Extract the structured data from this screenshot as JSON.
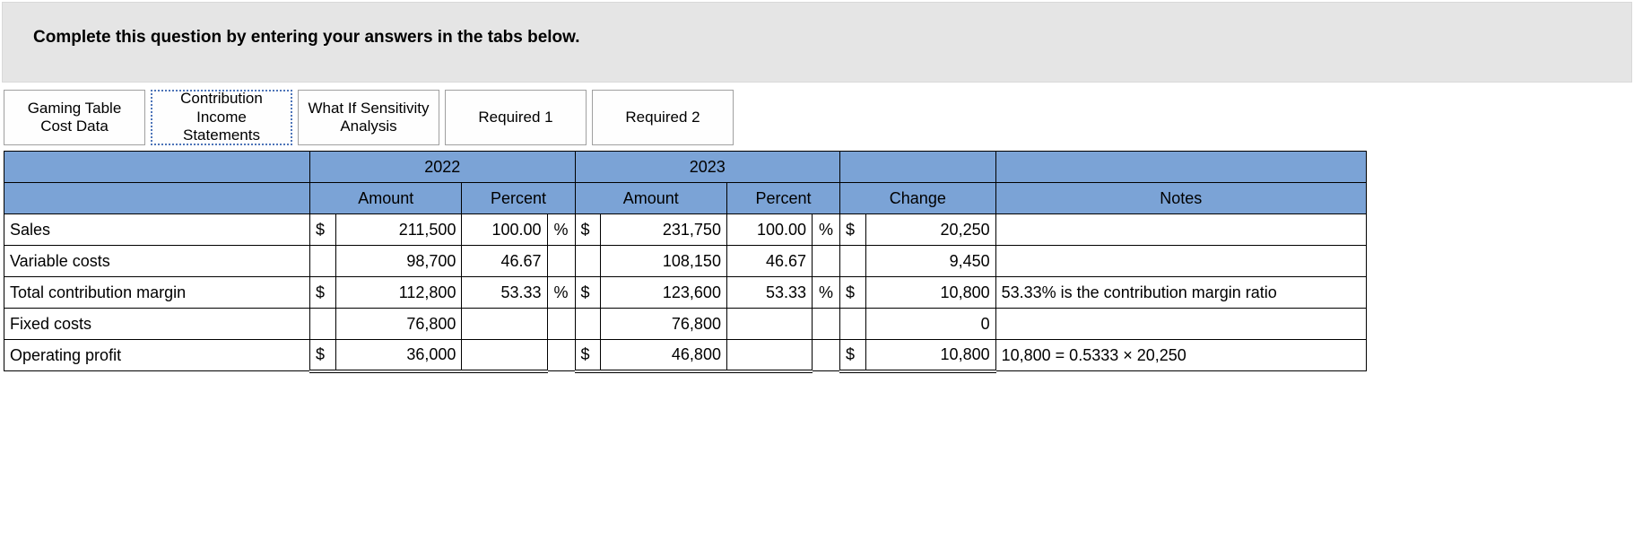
{
  "instruction_text": "Complete this question by entering your answers in the tabs below.",
  "tabs": [
    {
      "label": "Gaming Table Cost Data",
      "active": false
    },
    {
      "label": "Contribution Income Statements",
      "active": true
    },
    {
      "label": "What If Sensitivity Analysis",
      "active": false
    },
    {
      "label": "Required 1",
      "active": false
    },
    {
      "label": "Required 2",
      "active": false
    }
  ],
  "colors": {
    "header_fill": "#7ba3d6",
    "instruction_bg": "#e5e5e5",
    "border": "#000000",
    "tab_border": "#a0a0a0",
    "active_tab_border": "#4d74b8"
  },
  "table": {
    "year_headers": [
      "2022",
      "2023"
    ],
    "sub_headers": [
      "Amount",
      "Percent",
      "Amount",
      "Percent",
      "Change",
      "Notes"
    ],
    "rows": [
      {
        "label": "Sales",
        "amt22_d": "$",
        "amt22": "211,500",
        "pct22": "100.00",
        "pu22": "%",
        "amt23_d": "$",
        "amt23": "231,750",
        "pct23": "100.00",
        "pu23": "%",
        "chg_d": "$",
        "chg": "20,250",
        "notes": ""
      },
      {
        "label": "Variable costs",
        "amt22_d": "",
        "amt22": "98,700",
        "pct22": "46.67",
        "pu22": "",
        "amt23_d": "",
        "amt23": "108,150",
        "pct23": "46.67",
        "pu23": "",
        "chg_d": "",
        "chg": "9,450",
        "notes": ""
      },
      {
        "label": "Total contribution margin",
        "amt22_d": "$",
        "amt22": "112,800",
        "pct22": "53.33",
        "pu22": "%",
        "amt23_d": "$",
        "amt23": "123,600",
        "pct23": "53.33",
        "pu23": "%",
        "chg_d": "$",
        "chg": "10,800",
        "notes": "53.33% is the contribution margin ratio"
      },
      {
        "label": "Fixed costs",
        "amt22_d": "",
        "amt22": "76,800",
        "pct22": "",
        "pu22": "",
        "amt23_d": "",
        "amt23": "76,800",
        "pct23": "",
        "pu23": "",
        "chg_d": "",
        "chg": "0",
        "notes": ""
      },
      {
        "label": "Operating profit",
        "amt22_d": "$",
        "amt22": "36,000",
        "pct22": "",
        "pu22": "",
        "amt23_d": "$",
        "amt23": "46,800",
        "pct23": "",
        "pu23": "",
        "chg_d": "$",
        "chg": "10,800",
        "notes": "10,800 = 0.5333 × 20,250",
        "double_underline": true
      }
    ]
  }
}
